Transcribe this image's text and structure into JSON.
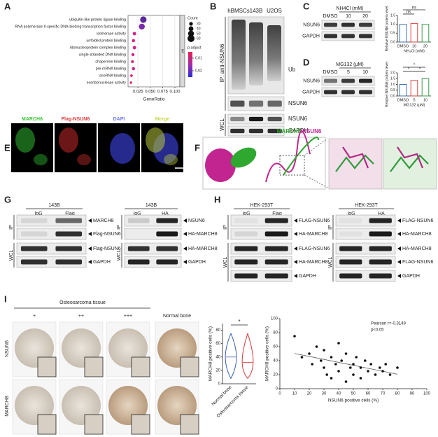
{
  "A": {
    "letter": "A",
    "terms": [
      "ubiquitin-like protein ligase binding",
      "RNA polymerase II-specific DNA-binding transcription factor binding",
      "isomerase activity",
      "unfolded protein binding",
      "ribonucleoprotein complex binding",
      "single-stranded DNA binding",
      "chaperone binding",
      "pre-mRNA binding",
      "snoRNA binding",
      "exoribonuclease activity"
    ],
    "gene_ratio": [
      0.036,
      0.033,
      0.018,
      0.016,
      0.018,
      0.015,
      0.014,
      0.016,
      0.012,
      0.011
    ],
    "count": [
      55,
      50,
      28,
      25,
      28,
      24,
      22,
      25,
      20,
      18
    ],
    "colors": [
      "#5b2a9c",
      "#7a2aa8",
      "#d02a8a",
      "#d8267e",
      "#cc2c90",
      "#d52684",
      "#d7287f",
      "#cf2a8c",
      "#e0246e",
      "#e52265"
    ],
    "xlim": [
      0.005,
      0.11
    ],
    "xticks": [
      0.025,
      {
        "value": 0.05,
        "label": "0.050"
      },
      0.075,
      {
        "value": 0.1,
        "label": "0.100"
      }
    ],
    "xlabel": "GeneRatio",
    "ontology": "MF",
    "count_title": "Count",
    "count_ticks": [
      30,
      40,
      50,
      60
    ],
    "count_lim": [
      15,
      60
    ],
    "padj_title": "p.adjust",
    "padj_ticks": [
      0.01,
      0.02
    ],
    "padj_lim": [
      0.005,
      0.025
    ]
  },
  "B": {
    "letter": "B",
    "lanes": [
      "hBMSCs",
      "143B",
      "U2OS"
    ],
    "ip": "IP: anti-NSUN6",
    "ub": "Ub",
    "ip_nsun6": "NSUN6",
    "wcl": "WCL",
    "wcl_nsun6": "NSUN6",
    "gapdh": "GAPDH"
  },
  "C": {
    "letter": "C",
    "treatment": "NH4Cl (mM)",
    "lanes": [
      "DMSO",
      "10",
      "20"
    ],
    "rows": [
      "NSUN6",
      "GAPDH"
    ],
    "chart": {
      "type": "bar",
      "ylabel": "Relative NSUN6 protein level",
      "categories": [
        "DMSO",
        "10",
        "20"
      ],
      "values": [
        1.0,
        1.05,
        1.0
      ],
      "colors": [
        "#3b6fb6",
        "#d9453c",
        "#3a9a4a"
      ],
      "ylim": [
        0,
        1.5
      ],
      "yticks": [
        {
          "value": 0,
          "label": "0.0"
        },
        0.5,
        {
          "value": 1,
          "label": "1.0"
        },
        1.5
      ],
      "xlabel": "NH₄Cl (mM)",
      "annotations": [
        "ns",
        "ns"
      ]
    }
  },
  "D": {
    "letter": "D",
    "treatment": "MG132 (μM)",
    "lanes": [
      "DMSO",
      "5",
      "10"
    ],
    "rows": [
      "NSUN6",
      "GAPDH"
    ],
    "chart": {
      "type": "bar",
      "ylabel": "Relative NSUN6 protein level",
      "categories": [
        "DMSO",
        "5",
        "10"
      ],
      "values": [
        1.0,
        1.35,
        1.5
      ],
      "colors": [
        "#3b6fb6",
        "#d9453c",
        "#3a9a4a"
      ],
      "ylim": [
        0,
        2
      ],
      "yticks": [
        {
          "value": 0,
          "label": "0.0"
        },
        0.5,
        {
          "value": 1,
          "label": "1.0"
        },
        1.5,
        {
          "value": 2,
          "label": "2.0"
        }
      ],
      "xlabel": "MG132 (μM)",
      "annotations": [
        "*",
        "*",
        "*"
      ]
    }
  },
  "E": {
    "letter": "E",
    "channels": [
      "MARCH8",
      "Flag-NSUN6",
      "DAPI",
      "Merge"
    ]
  },
  "F": {
    "letter": "F",
    "title_a": "MARCH8",
    "title_b": "/NSUN6"
  },
  "G": {
    "letter": "G",
    "left": {
      "cell": "143B",
      "lanes": [
        "IgG",
        "Flag"
      ],
      "ip": "IP",
      "wcl": "WCL",
      "rows": [
        "MARCH8",
        "Flag-NSUN6",
        "Flag-NSUN6",
        "GAPDH"
      ]
    },
    "right": {
      "cell": "143B",
      "lanes": [
        "IgG",
        "HA"
      ],
      "ip": "IP",
      "wcl": "WCL",
      "rows": [
        "NSUN6",
        "HA-MARCH8",
        "HA-MARCH8",
        "GAPDH"
      ]
    }
  },
  "H": {
    "letter": "H",
    "left": {
      "cell": "HEK-293T",
      "lanes": [
        "IgG",
        "Flag"
      ],
      "ip": "IP",
      "wcl": "WCL",
      "rows": [
        "FLAG-NSUN6",
        "HA-MARCH8",
        "FLAG-NSUN6",
        "HA-MARCH8",
        "GAPDH"
      ]
    },
    "right": {
      "cell": "HEK-293T",
      "lanes": [
        "IgG",
        "HA"
      ],
      "ip": "IP",
      "wcl": "WCL",
      "rows": [
        "FLAG-NSUN6",
        "HA-MARCH8",
        "HA-MARCH8",
        "FLAG-NSUN6",
        "GAPDH"
      ]
    }
  },
  "I": {
    "letter": "I",
    "tissue": "Osteosarcoma tissue",
    "grades": [
      "+",
      "++",
      "+++",
      "Normal bone"
    ],
    "rows": [
      "NSUN6",
      "MARCH8"
    ],
    "violin": {
      "ylabel": "MARCH8 positive cells (%)",
      "categories": [
        "Normal bone",
        "Osteosarcoma tissue"
      ],
      "ylim": [
        0,
        90
      ],
      "yticks": [
        0,
        20,
        40,
        60,
        80
      ],
      "sig": "*"
    },
    "scatter": {
      "type": "scatter",
      "ylabel": "MARCH8 positive cells (%)",
      "xlabel": "NSUN6 positive cells (%)",
      "x": [
        10,
        15,
        20,
        22,
        25,
        28,
        30,
        30,
        32,
        35,
        35,
        38,
        40,
        40,
        42,
        45,
        45,
        48,
        50,
        50,
        52,
        55,
        55,
        58,
        60,
        62,
        65,
        68,
        70,
        72,
        75,
        80
      ],
      "y": [
        75,
        45,
        50,
        35,
        60,
        40,
        30,
        55,
        20,
        45,
        15,
        35,
        65,
        25,
        40,
        50,
        10,
        30,
        35,
        20,
        45,
        30,
        15,
        40,
        25,
        35,
        20,
        30,
        25,
        35,
        20,
        30
      ],
      "xlim": [
        0,
        100
      ],
      "ylim": [
        0,
        100
      ],
      "xticks": [
        0,
        10,
        20,
        30,
        40,
        50,
        60,
        70,
        80,
        90,
        100
      ],
      "yticks": [
        0,
        20,
        40,
        60,
        80,
        100
      ],
      "stat_r": "Pearson r=-0.3149",
      "stat_p": "p<0.05"
    }
  }
}
